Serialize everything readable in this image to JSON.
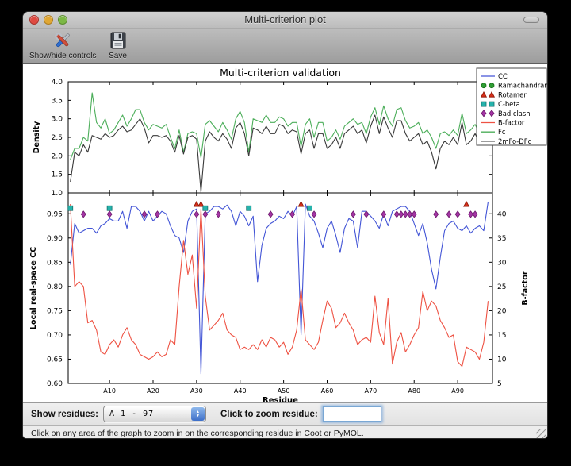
{
  "window": {
    "title": "Multi-criterion plot"
  },
  "toolbar": {
    "buttons": [
      {
        "label": "Show/hide controls",
        "icon": "tools-icon"
      },
      {
        "label": "Save",
        "icon": "save-icon"
      }
    ]
  },
  "controls": {
    "show_residues_label": "Show residues:",
    "residue_range_value": "A  1 - 97",
    "zoom_label": "Click to zoom residue:",
    "zoom_input_value": ""
  },
  "status_bar": {
    "text": "Click on any area of the graph to zoom in on the corresponding residue in Coot or PyMOL."
  },
  "ui_colors": {
    "focus_ring": "#6ea8dc",
    "stepper_blue": "#3d6fc9",
    "traffic": [
      "#df4a41",
      "#e0a733",
      "#7cb845"
    ]
  },
  "chart_data": {
    "type": "line",
    "title": "Multi-criterion validation",
    "xlabel": "Residue",
    "x_range": [
      0.5,
      98
    ],
    "x_start_residue": 1,
    "x_ticks": [
      {
        "v": 10,
        "label": "A10"
      },
      {
        "v": 20,
        "label": "A20"
      },
      {
        "v": 30,
        "label": "A30"
      },
      {
        "v": 40,
        "label": "A40"
      },
      {
        "v": 50,
        "label": "A50"
      },
      {
        "v": 60,
        "label": "A60"
      },
      {
        "v": 70,
        "label": "A70"
      },
      {
        "v": 80,
        "label": "A80"
      },
      {
        "v": 90,
        "label": "A90"
      }
    ],
    "top_plot": {
      "ylabel": "Density",
      "ylim": [
        1.0,
        4.0
      ],
      "yticks": [
        {
          "v": 1.0,
          "label": "1.0"
        },
        {
          "v": 1.5,
          "label": "1.5"
        },
        {
          "v": 2.0,
          "label": "2.0"
        },
        {
          "v": 2.5,
          "label": "2.5"
        },
        {
          "v": 3.0,
          "label": "3.0"
        },
        {
          "v": 3.5,
          "label": "3.5"
        },
        {
          "v": 4.0,
          "label": "4.0"
        }
      ],
      "series": [
        {
          "name": "Fc",
          "color": "#4cae5a",
          "values": [
            1.9,
            2.2,
            2.2,
            2.5,
            2.4,
            3.7,
            2.9,
            2.75,
            3.0,
            2.6,
            2.7,
            2.9,
            3.1,
            2.8,
            3.0,
            3.25,
            3.25,
            2.9,
            2.7,
            2.85,
            2.8,
            2.75,
            2.85,
            2.5,
            2.2,
            2.7,
            2.1,
            2.6,
            2.65,
            2.6,
            1.95,
            2.85,
            2.95,
            2.8,
            2.65,
            2.9,
            2.7,
            2.45,
            3.0,
            3.2,
            2.9,
            2.1,
            3.0,
            2.95,
            2.9,
            3.1,
            2.9,
            2.9,
            3.05,
            3.0,
            2.8,
            2.9,
            2.9,
            2.25,
            2.85,
            3.0,
            2.5,
            2.9,
            2.9,
            2.4,
            2.5,
            2.7,
            2.45,
            2.8,
            2.9,
            3.0,
            2.85,
            2.9,
            2.6,
            3.05,
            3.3,
            2.85,
            3.35,
            3.0,
            2.8,
            3.25,
            3.3,
            2.95,
            2.75,
            2.8,
            2.9,
            2.6,
            2.7,
            2.5,
            2.2,
            2.6,
            2.65,
            2.55,
            2.7,
            2.55,
            3.15,
            2.6,
            2.7,
            2.85,
            2.6,
            2.55,
            3.3
          ]
        },
        {
          "name": "2mFo-DFc",
          "color": "#3a3a3a",
          "values": [
            1.3,
            2.1,
            2.0,
            2.3,
            2.1,
            2.55,
            2.5,
            2.45,
            2.6,
            2.5,
            2.55,
            2.7,
            2.8,
            2.65,
            2.7,
            2.85,
            3.0,
            2.75,
            2.35,
            2.55,
            2.55,
            2.5,
            2.55,
            2.4,
            2.1,
            2.55,
            2.05,
            2.5,
            2.55,
            2.45,
            1.02,
            2.4,
            2.65,
            2.5,
            2.4,
            2.6,
            2.45,
            2.2,
            2.75,
            2.9,
            2.6,
            2.0,
            2.75,
            2.7,
            2.6,
            2.8,
            2.6,
            2.6,
            2.85,
            2.8,
            2.6,
            2.7,
            2.65,
            2.05,
            2.6,
            2.7,
            2.2,
            2.6,
            2.6,
            2.2,
            2.3,
            2.5,
            2.2,
            2.6,
            2.7,
            2.8,
            2.6,
            2.7,
            2.35,
            2.8,
            3.1,
            2.6,
            3.05,
            2.75,
            2.5,
            2.95,
            2.95,
            2.6,
            2.4,
            2.5,
            2.6,
            2.3,
            2.4,
            2.1,
            1.65,
            2.2,
            2.4,
            2.3,
            2.5,
            2.3,
            2.9,
            2.3,
            2.4,
            2.6,
            2.35,
            2.3,
            3.05
          ]
        }
      ]
    },
    "bottom_plot": {
      "ylabel_left": "Local real-space CC",
      "ylim_left": [
        0.6,
        0.993
      ],
      "yticks_left": [
        {
          "v": 0.6,
          "label": "0.60"
        },
        {
          "v": 0.65,
          "label": "0.65"
        },
        {
          "v": 0.7,
          "label": "0.70"
        },
        {
          "v": 0.75,
          "label": "0.75"
        },
        {
          "v": 0.8,
          "label": "0.80"
        },
        {
          "v": 0.85,
          "label": "0.85"
        },
        {
          "v": 0.9,
          "label": "0.90"
        },
        {
          "v": 0.95,
          "label": "0.95"
        }
      ],
      "ylabel_right": "B-factor",
      "ylim_right": [
        5,
        44.3
      ],
      "yticks_right": [
        {
          "v": 5,
          "label": "5"
        },
        {
          "v": 10,
          "label": "10"
        },
        {
          "v": 15,
          "label": "15"
        },
        {
          "v": 20,
          "label": "20"
        },
        {
          "v": 25,
          "label": "25"
        },
        {
          "v": 30,
          "label": "30"
        },
        {
          "v": 35,
          "label": "35"
        },
        {
          "v": 40,
          "label": "40"
        }
      ],
      "series": [
        {
          "name": "CC",
          "axis": "left",
          "color": "#4355d6",
          "values": [
            0.845,
            0.93,
            0.91,
            0.915,
            0.92,
            0.92,
            0.91,
            0.925,
            0.93,
            0.94,
            0.935,
            0.935,
            0.955,
            0.92,
            0.965,
            0.965,
            0.955,
            0.935,
            0.955,
            0.935,
            0.945,
            0.955,
            0.95,
            0.925,
            0.905,
            0.9,
            0.87,
            0.935,
            0.955,
            0.96,
            0.62,
            0.95,
            0.955,
            0.965,
            0.965,
            0.96,
            0.968,
            0.955,
            0.925,
            0.955,
            0.945,
            0.925,
            0.945,
            0.81,
            0.885,
            0.92,
            0.93,
            0.935,
            0.945,
            0.94,
            0.955,
            0.945,
            0.965,
            0.7,
            0.97,
            0.945,
            0.935,
            0.91,
            0.88,
            0.92,
            0.935,
            0.905,
            0.87,
            0.92,
            0.94,
            0.935,
            0.88,
            0.955,
            0.955,
            0.945,
            0.935,
            0.92,
            0.95,
            0.925,
            0.955,
            0.96,
            0.965,
            0.965,
            0.955,
            0.93,
            0.905,
            0.93,
            0.89,
            0.835,
            0.795,
            0.86,
            0.915,
            0.93,
            0.935,
            0.92,
            0.915,
            0.925,
            0.91,
            0.92,
            0.925,
            0.915,
            0.975
          ]
        },
        {
          "name": "B-factor",
          "axis": "right",
          "color": "#ee5243",
          "values": [
            42,
            25,
            26,
            25,
            17.5,
            18,
            16,
            11.5,
            11,
            13,
            14,
            12.5,
            15,
            16.5,
            14,
            13,
            11,
            10.5,
            10,
            10.5,
            11.5,
            10.5,
            11,
            14,
            13,
            25,
            34.5,
            27.5,
            31.5,
            20.5,
            41,
            23,
            16,
            17,
            18,
            19.5,
            16,
            15,
            14.5,
            12,
            12.5,
            12,
            13,
            12,
            14,
            12.5,
            14.5,
            14,
            12.5,
            13.5,
            11,
            12.5,
            16,
            24.5,
            14,
            13,
            12,
            13.5,
            18,
            22,
            20.5,
            16.5,
            17.5,
            19.5,
            17.5,
            16,
            13,
            14,
            14.5,
            13.5,
            23,
            15.5,
            13,
            22.5,
            9,
            13.5,
            15.5,
            11.5,
            13,
            15,
            16.5,
            24,
            20,
            22,
            21,
            18,
            16.5,
            14.5,
            15,
            9.5,
            8.5,
            12.5,
            12,
            11.5,
            10,
            13.5,
            22
          ]
        }
      ],
      "markers": [
        {
          "name": "Ramachandran",
          "shape": "circle",
          "color": "#2f9e35",
          "edge": "#166b16",
          "level": 0.9695,
          "residues": []
        },
        {
          "name": "Rotamer",
          "shape": "triangle",
          "color": "#d62f1a",
          "edge": "#8b1505",
          "level": 0.9695,
          "residues": [
            30,
            31,
            54,
            92
          ]
        },
        {
          "name": "C-beta",
          "shape": "square",
          "color": "#26b3ac",
          "edge": "#15716c",
          "level": 0.9615,
          "residues": [
            1,
            10,
            32,
            42,
            56
          ]
        },
        {
          "name": "Bad clash",
          "shape": "diamond",
          "color": "#a435a4",
          "edge": "#6b176b",
          "level": 0.949,
          "residues": [
            4,
            10,
            18,
            21,
            30,
            32,
            35,
            47,
            52,
            57,
            66,
            69,
            73,
            76,
            77,
            78,
            79,
            80,
            85,
            88,
            90,
            93,
            94
          ]
        }
      ]
    },
    "legend": {
      "position": "upper right",
      "entries": [
        {
          "label": "CC",
          "type": "line",
          "color": "#4355d6"
        },
        {
          "label": "Ramachandran",
          "type": "points",
          "shape": "circle",
          "color": "#2f9e35",
          "edge": "#166b16"
        },
        {
          "label": "Rotamer",
          "type": "points",
          "shape": "triangle",
          "color": "#d62f1a",
          "edge": "#8b1505"
        },
        {
          "label": "C-beta",
          "type": "points",
          "shape": "square",
          "color": "#26b3ac",
          "edge": "#15716c"
        },
        {
          "label": "Bad clash",
          "type": "points",
          "shape": "diamond",
          "color": "#a435a4",
          "edge": "#6b176b"
        },
        {
          "label": "B-factor",
          "type": "line",
          "color": "#ee5243"
        },
        {
          "label": "Fc",
          "type": "line",
          "color": "#4cae5a"
        },
        {
          "label": "2mFo-DFc",
          "type": "line",
          "color": "#3a3a3a"
        }
      ]
    }
  }
}
